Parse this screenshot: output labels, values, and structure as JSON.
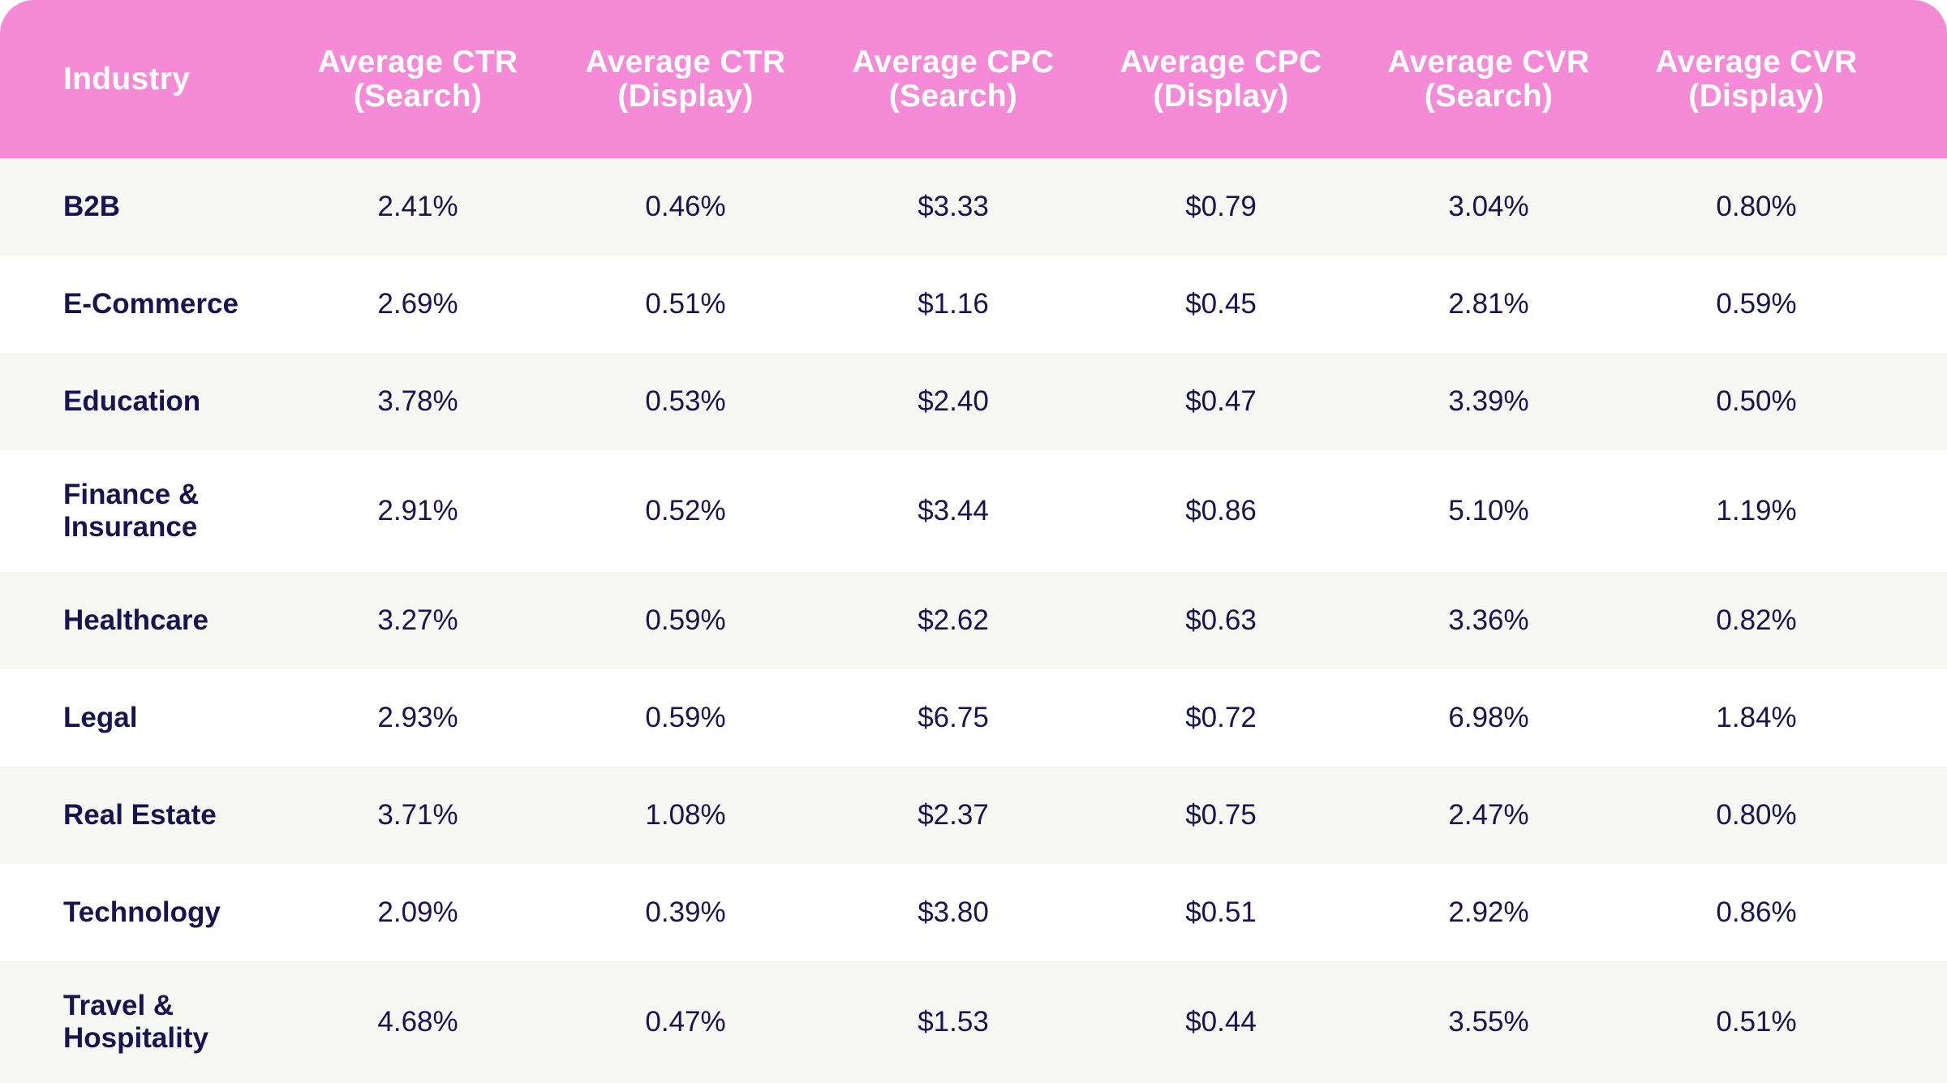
{
  "columns": [
    "Industry",
    "Average CTR\n(Search)",
    "Average CTR\n(Display)",
    "Average CPC\n(Search)",
    "Average CPC\n(Display)",
    "Average CVR\n(Search)",
    "Average CVR\n(Display)"
  ],
  "rows": [
    [
      "B2B",
      "2.41%",
      "0.46%",
      "$3.33",
      "$0.79",
      "3.04%",
      "0.80%"
    ],
    [
      "E-Commerce",
      "2.69%",
      "0.51%",
      "$1.16",
      "$0.45",
      "2.81%",
      "0.59%"
    ],
    [
      "Education",
      "3.78%",
      "0.53%",
      "$2.40",
      "$0.47",
      "3.39%",
      "0.50%"
    ],
    [
      "Finance &\nInsurance",
      "2.91%",
      "0.52%",
      "$3.44",
      "$0.86",
      "5.10%",
      "1.19%"
    ],
    [
      "Healthcare",
      "3.27%",
      "0.59%",
      "$2.62",
      "$0.63",
      "3.36%",
      "0.82%"
    ],
    [
      "Legal",
      "2.93%",
      "0.59%",
      "$6.75",
      "$0.72",
      "6.98%",
      "1.84%"
    ],
    [
      "Real Estate",
      "3.71%",
      "1.08%",
      "$2.37",
      "$0.75",
      "2.47%",
      "0.80%"
    ],
    [
      "Technology",
      "2.09%",
      "0.39%",
      "$3.80",
      "$0.51",
      "2.92%",
      "0.86%"
    ],
    [
      "Travel &\nHospitality",
      "4.68%",
      "0.47%",
      "$1.53",
      "$0.44",
      "3.55%",
      "0.51%"
    ]
  ],
  "colors": {
    "header_bg": "#f58ad7",
    "header_text": "#ffffff",
    "body_text": "#17144f",
    "row_shaded": "#f6f6f3",
    "row_plain": "#ffffff"
  }
}
